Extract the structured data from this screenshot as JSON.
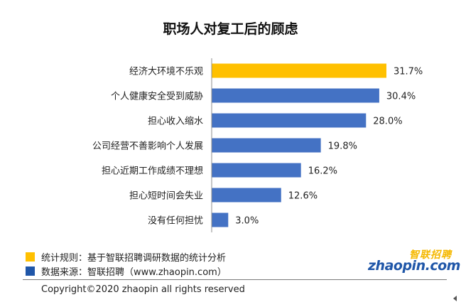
{
  "chart_data": {
    "type": "bar",
    "orientation": "horizontal",
    "title": "职场人对复工后的顾虑",
    "categories": [
      "经济大环境不乐观",
      "个人健康安全受到威胁",
      "担心收入缩水",
      "公司经营不善影响个人发展",
      "担心近期工作成绩不理想",
      "担心短时间会失业",
      "没有任何担忧"
    ],
    "values": [
      31.7,
      30.4,
      28.0,
      19.8,
      16.2,
      12.6,
      3.0
    ],
    "value_labels": [
      "31.7%",
      "30.4%",
      "28.0%",
      "19.8%",
      "16.2%",
      "12.6%",
      "3.0%"
    ],
    "colors": [
      "#ffc000",
      "#4472c4",
      "#4472c4",
      "#4472c4",
      "#4472c4",
      "#4472c4",
      "#4472c4"
    ],
    "xlim": [
      0,
      35
    ],
    "grid": false
  },
  "legend": [
    {
      "label": "统计规则：基于智联招聘调研数据的统计分析",
      "color": "#ffc000"
    },
    {
      "label": "数据来源：智联招聘（www.zhaopin.com）",
      "color": "#1f56a8"
    }
  ],
  "logo": {
    "cn": "智联招聘",
    "en": "zhaopin.com"
  },
  "copyright": "Copyright©2020 zhaopin all rights reserved"
}
